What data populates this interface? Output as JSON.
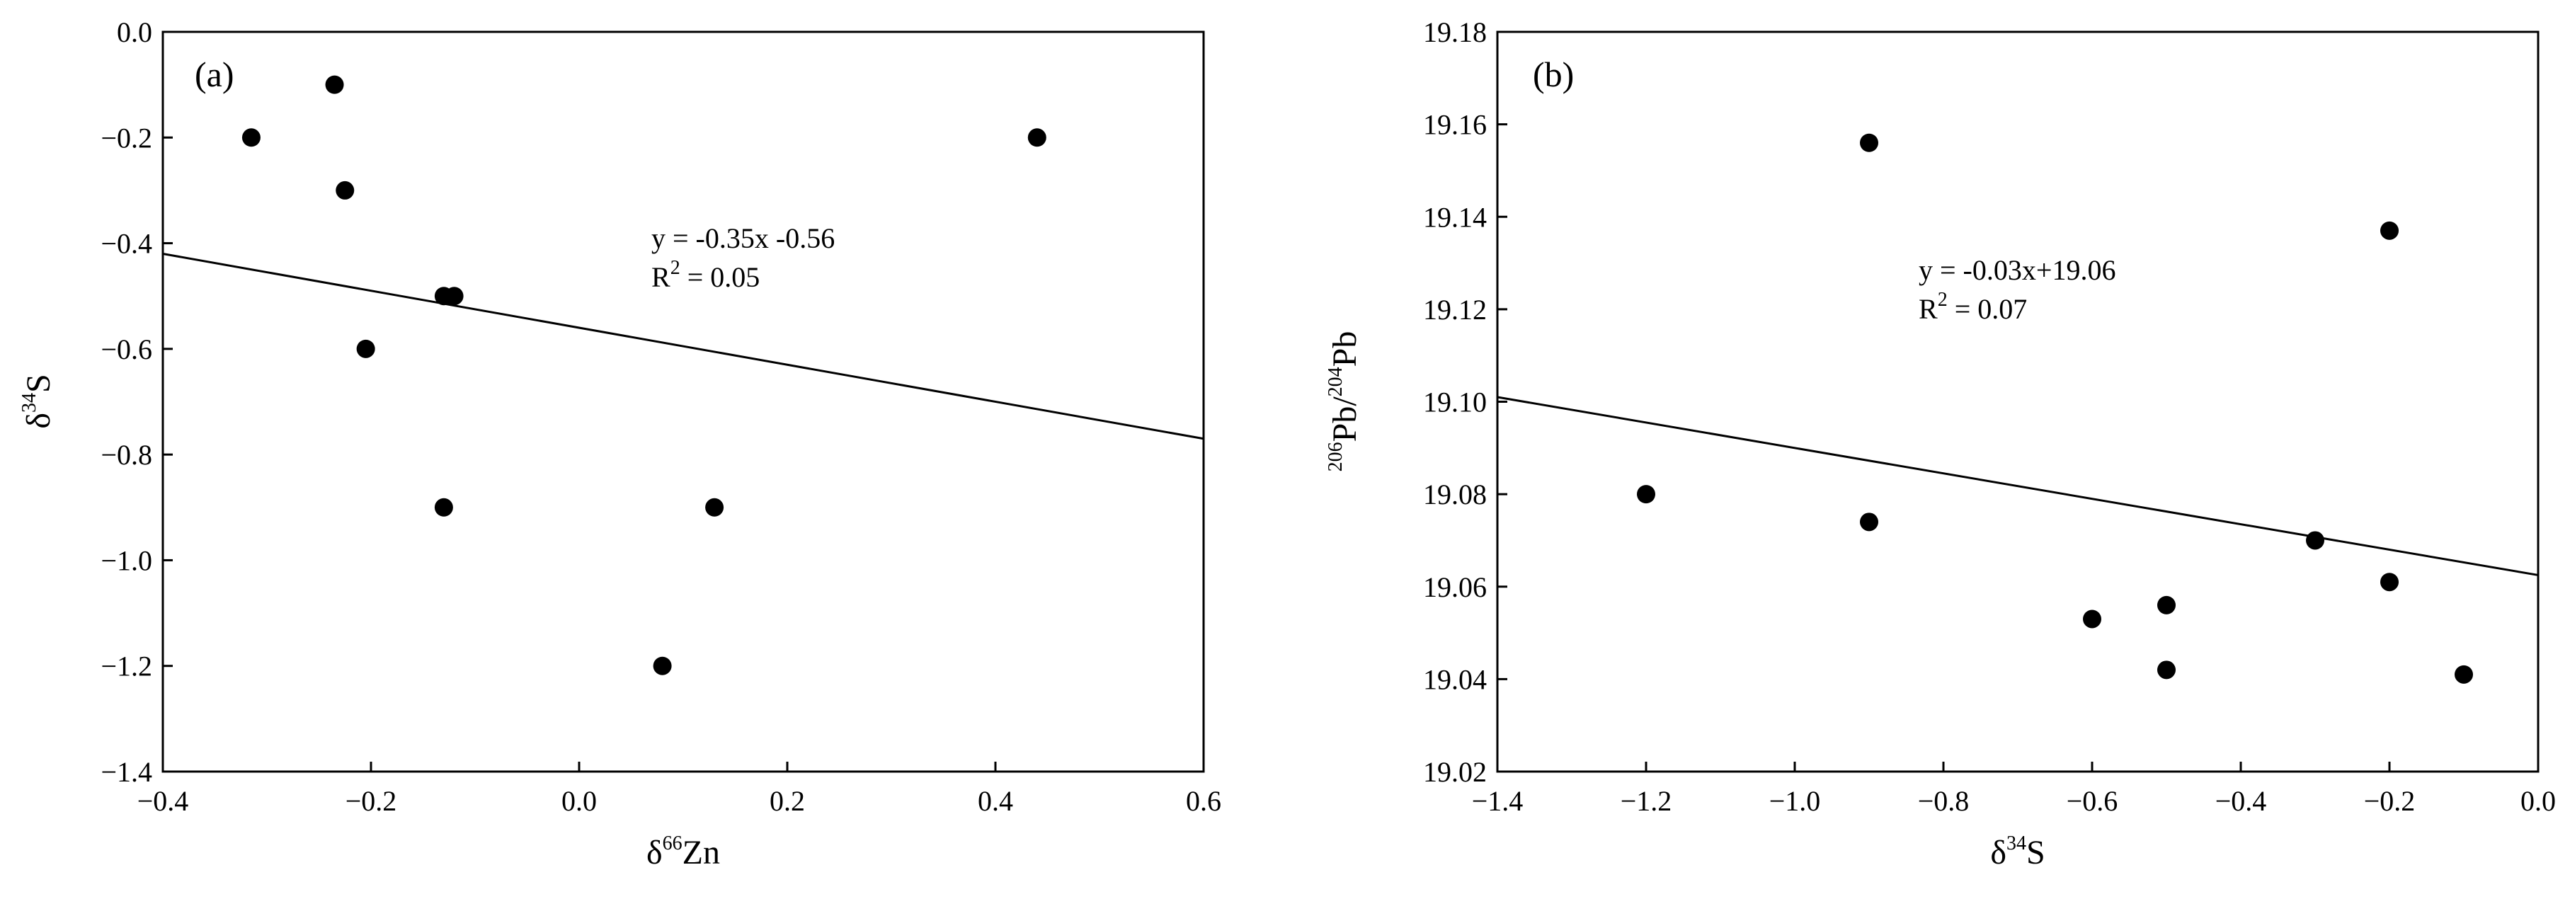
{
  "chart_data": [
    {
      "type": "scatter",
      "panel_label": "(a)",
      "xlabel": {
        "prefix": "δ",
        "sup": "66",
        "suffix": "Zn"
      },
      "ylabel": {
        "prefix": "δ",
        "sup": "34",
        "suffix": "S"
      },
      "xlim": [
        -0.4,
        0.6
      ],
      "ylim": [
        -1.4,
        0.0
      ],
      "x_ticks": [
        -0.4,
        -0.2,
        0.0,
        0.2,
        0.4,
        0.6
      ],
      "x_tick_labels": [
        "−0.4",
        "−0.2",
        "0.0",
        "0.2",
        "0.4",
        "0.6"
      ],
      "y_ticks": [
        0.0,
        -0.2,
        -0.4,
        -0.6,
        -0.8,
        -1.0,
        -1.2,
        -1.4
      ],
      "y_tick_labels": [
        "0.0",
        "−0.2",
        "−0.4",
        "−0.6",
        "−0.8",
        "−1.0",
        "−1.2",
        "−1.4"
      ],
      "points": [
        {
          "x": -0.315,
          "y": -0.2
        },
        {
          "x": -0.235,
          "y": -0.1
        },
        {
          "x": -0.225,
          "y": -0.3
        },
        {
          "x": -0.205,
          "y": -0.6
        },
        {
          "x": -0.13,
          "y": -0.5
        },
        {
          "x": -0.12,
          "y": -0.5
        },
        {
          "x": -0.13,
          "y": -0.9
        },
        {
          "x": 0.13,
          "y": -0.9
        },
        {
          "x": 0.08,
          "y": -1.2
        },
        {
          "x": 0.44,
          "y": -0.2
        }
      ],
      "fit": {
        "slope": -0.35,
        "intercept": -0.56
      },
      "equation_text": "y = -0.35x -0.56",
      "r2_text": {
        "prefix": "R",
        "sup": "2",
        "suffix": " = 0.05"
      },
      "grid": false,
      "legend": "none"
    },
    {
      "type": "scatter",
      "panel_label": "(b)",
      "xlabel": {
        "prefix": "δ",
        "sup": "34",
        "suffix": "S"
      },
      "ylabel": {
        "sup1": "206",
        "mid": "Pb/",
        "sup2": "204",
        "suffix": "Pb"
      },
      "xlim": [
        -1.4,
        0.0
      ],
      "ylim": [
        19.02,
        19.18
      ],
      "x_ticks": [
        -1.4,
        -1.2,
        -1.0,
        -0.8,
        -0.6,
        -0.4,
        -0.2,
        0.0
      ],
      "x_tick_labels": [
        "−1.4",
        "−1.2",
        "−1.0",
        "−0.8",
        "−0.6",
        "−0.4",
        "−0.2",
        "0.0"
      ],
      "y_ticks": [
        19.02,
        19.04,
        19.06,
        19.08,
        19.1,
        19.12,
        19.14,
        19.16,
        19.18
      ],
      "y_tick_labels": [
        "19.02",
        "19.04",
        "19.06",
        "19.08",
        "19.10",
        "19.12",
        "19.14",
        "19.16",
        "19.18"
      ],
      "points": [
        {
          "x": -1.2,
          "y": 19.08
        },
        {
          "x": -0.9,
          "y": 19.156
        },
        {
          "x": -0.9,
          "y": 19.074
        },
        {
          "x": -0.6,
          "y": 19.053
        },
        {
          "x": -0.5,
          "y": 19.056
        },
        {
          "x": -0.5,
          "y": 19.042
        },
        {
          "x": -0.3,
          "y": 19.07
        },
        {
          "x": -0.2,
          "y": 19.137
        },
        {
          "x": -0.2,
          "y": 19.061
        },
        {
          "x": -0.1,
          "y": 19.041
        }
      ],
      "fit": {
        "slope": -0.0275,
        "intercept": 19.0625
      },
      "equation_text": "y = -0.03x+19.06",
      "r2_text": {
        "prefix": "R",
        "sup": "2",
        "suffix": " = 0.07"
      },
      "grid": false,
      "legend": "none"
    }
  ]
}
